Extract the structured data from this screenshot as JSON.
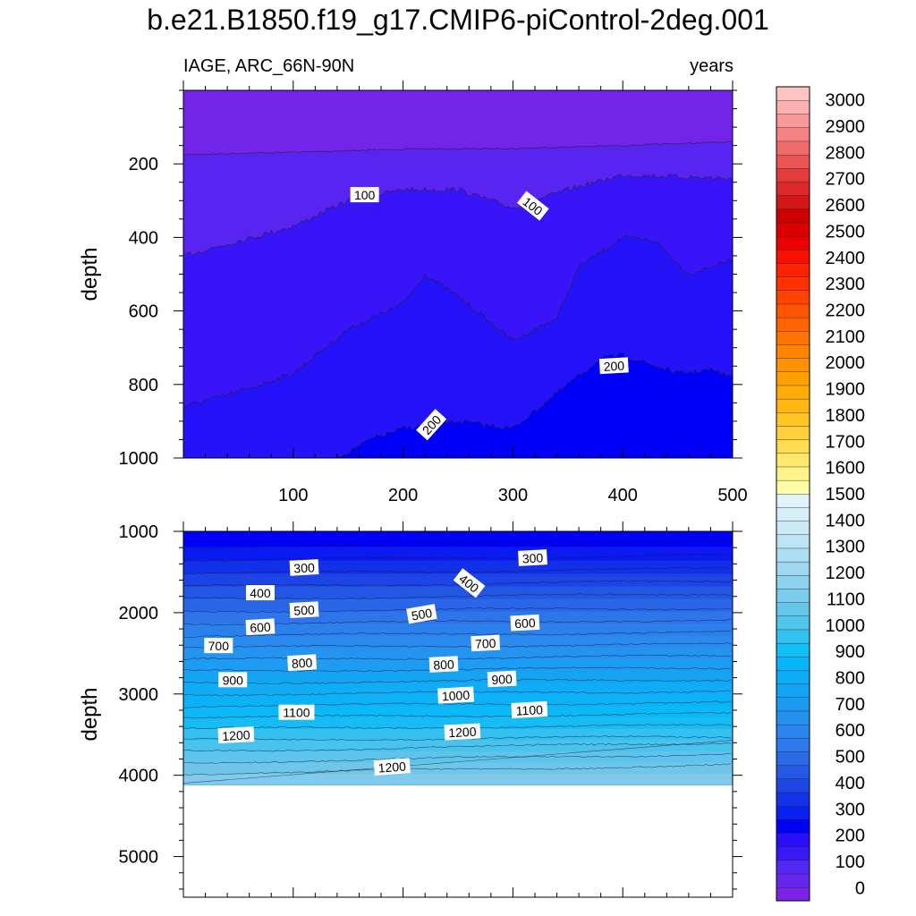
{
  "title": "b.e21.B1850.f19_g17.CMIP6-piControl-2deg.001",
  "left_subtitle": "IAGE, ARC_66N-90N",
  "right_subtitle": "years",
  "chart_data": [
    {
      "type": "heatmap",
      "panel": "upper",
      "variable": "IAGE",
      "region": "ARC_66N-90N",
      "units": "years",
      "xlim": [
        0,
        500
      ],
      "ylim": [
        0,
        1000
      ],
      "y_inverted": true,
      "xticks": [
        "100",
        "200",
        "300",
        "400",
        "500"
      ],
      "yticks": [
        "200",
        "400",
        "600",
        "800",
        "1000"
      ],
      "ylabel": "depth",
      "contour_labels": [
        {
          "text": "100",
          "x": 165,
          "depth": 285
        },
        {
          "text": "100",
          "x": 318,
          "depth": 315
        },
        {
          "text": "200",
          "x": 392,
          "depth": 750
        },
        {
          "text": "200",
          "x": 226,
          "depth": 910
        }
      ],
      "isolines": [
        {
          "level": 50,
          "x": [
            0,
            100,
            200,
            300,
            400,
            500
          ],
          "depth": [
            175,
            168,
            160,
            158,
            150,
            140
          ]
        },
        {
          "level": 100,
          "x": [
            0,
            50,
            100,
            150,
            200,
            250,
            300,
            350,
            400,
            450,
            500
          ],
          "depth": [
            450,
            410,
            370,
            300,
            270,
            270,
            320,
            270,
            230,
            235,
            240
          ]
        },
        {
          "level": 150,
          "x": [
            0,
            50,
            100,
            150,
            200,
            220,
            250,
            300,
            340,
            360,
            400,
            430,
            460,
            500
          ],
          "depth": [
            860,
            820,
            770,
            650,
            580,
            500,
            560,
            680,
            620,
            480,
            400,
            410,
            500,
            460
          ]
        },
        {
          "level": 200,
          "x": [
            140,
            170,
            200,
            250,
            300,
            350,
            380,
            400,
            450,
            480,
            500
          ],
          "depth": [
            1000,
            950,
            920,
            900,
            920,
            800,
            730,
            720,
            770,
            760,
            780
          ]
        }
      ],
      "fill_bands": [
        {
          "range": "0-50",
          "color": "#7224e8"
        },
        {
          "range": "50-100",
          "color": "#5a24f0"
        },
        {
          "range": "100-150",
          "color": "#3a14f8"
        },
        {
          "range": "150-200",
          "color": "#2412f8"
        },
        {
          "range": "200-250",
          "color": "#0000f8"
        }
      ]
    },
    {
      "type": "heatmap",
      "panel": "lower",
      "variable": "IAGE",
      "region": "ARC_66N-90N",
      "units": "years",
      "xlim": [
        0,
        500
      ],
      "ylim": [
        1000,
        5500
      ],
      "y_inverted": true,
      "yticks": [
        "1000",
        "2000",
        "3000",
        "4000",
        "5000"
      ],
      "ylabel": "depth",
      "data_bottom_depth": 4120,
      "contour_labels": [
        {
          "text": "300",
          "x": 110,
          "depth": 1450
        },
        {
          "text": "300",
          "x": 318,
          "depth": 1330
        },
        {
          "text": "400",
          "x": 70,
          "depth": 1760
        },
        {
          "text": "400",
          "x": 260,
          "depth": 1640
        },
        {
          "text": "500",
          "x": 110,
          "depth": 1970
        },
        {
          "text": "500",
          "x": 217,
          "depth": 2020
        },
        {
          "text": "600",
          "x": 70,
          "depth": 2180
        },
        {
          "text": "600",
          "x": 311,
          "depth": 2130
        },
        {
          "text": "700",
          "x": 32,
          "depth": 2410
        },
        {
          "text": "700",
          "x": 275,
          "depth": 2380
        },
        {
          "text": "800",
          "x": 108,
          "depth": 2620
        },
        {
          "text": "800",
          "x": 237,
          "depth": 2640
        },
        {
          "text": "900",
          "x": 45,
          "depth": 2830
        },
        {
          "text": "900",
          "x": 290,
          "depth": 2820
        },
        {
          "text": "1000",
          "x": 248,
          "depth": 3020
        },
        {
          "text": "1100",
          "x": 103,
          "depth": 3230
        },
        {
          "text": "1100",
          "x": 315,
          "depth": 3200
        },
        {
          "text": "1200",
          "x": 48,
          "depth": 3510
        },
        {
          "text": "1200",
          "x": 254,
          "depth": 3470
        },
        {
          "text": "1200",
          "x": 190,
          "depth": 3900
        }
      ],
      "fill_bands": [
        {
          "range": "200-250",
          "color": "#0000f8"
        },
        {
          "range": "250-300",
          "color": "#0a1af0"
        },
        {
          "range": "300-350",
          "color": "#1230e8"
        },
        {
          "range": "350-400",
          "color": "#1c44e6"
        },
        {
          "range": "400-450",
          "color": "#2456e6"
        },
        {
          "range": "450-500",
          "color": "#2a66e8"
        },
        {
          "range": "500-550",
          "color": "#2e74ea"
        },
        {
          "range": "550-600",
          "color": "#2c80ec"
        },
        {
          "range": "600-650",
          "color": "#2a8aee"
        },
        {
          "range": "650-700",
          "color": "#2494f0"
        },
        {
          "range": "700-750",
          "color": "#1c9cf2"
        },
        {
          "range": "750-800",
          "color": "#14a4f4"
        },
        {
          "range": "800-850",
          "color": "#10acf6"
        },
        {
          "range": "850-900",
          "color": "#0cb2f6"
        },
        {
          "range": "900-950",
          "color": "#0cb8f6"
        },
        {
          "range": "950-1000",
          "color": "#18bcf4"
        },
        {
          "range": "1000-1050",
          "color": "#34c0f0"
        },
        {
          "range": "1050-1100",
          "color": "#4ac2ee"
        },
        {
          "range": "1100-1150",
          "color": "#5ec4ec"
        },
        {
          "range": "1150-1200",
          "color": "#6ec6ea"
        },
        {
          "range": "1200-1250",
          "color": "#80caee"
        }
      ]
    },
    {
      "type": "colorbar",
      "labels": [
        "0",
        "100",
        "200",
        "300",
        "400",
        "500",
        "600",
        "700",
        "800",
        "900",
        "1000",
        "1100",
        "1200",
        "1300",
        "1400",
        "1500",
        "1600",
        "1700",
        "1800",
        "1900",
        "2000",
        "2100",
        "2200",
        "2300",
        "2400",
        "2500",
        "2600",
        "2700",
        "2800",
        "2900",
        "3000"
      ],
      "bands": [
        "#7b22e6",
        "#6626ee",
        "#5228f2",
        "#3a18f6",
        "#2a10fa",
        "#0000f8",
        "#0a20f0",
        "#1432e8",
        "#1e46e4",
        "#2658e6",
        "#2c6ae8",
        "#2e7aec",
        "#2a86ee",
        "#2490f0",
        "#1a9af2",
        "#10a4f4",
        "#0cacf6",
        "#06b6f8",
        "#12bef4",
        "#34c2f0",
        "#50c6ec",
        "#64c8ea",
        "#7ccdec",
        "#8ed2ee",
        "#9ed8f0",
        "#aedef2",
        "#bee4f4",
        "#cbeaf6",
        "#d6eef8",
        "#e2f2fa",
        "#fffca8",
        "#fff28a",
        "#ffe86c",
        "#ffdc50",
        "#ffd03a",
        "#ffc426",
        "#ffb812",
        "#ffac06",
        "#ffa000",
        "#ff9200",
        "#ff8400",
        "#ff7400",
        "#ff6400",
        "#ff5400",
        "#ff4400",
        "#ff3200",
        "#ff2200",
        "#f81000",
        "#ec0000",
        "#dc0000",
        "#cc0000",
        "#d41616",
        "#dc2828",
        "#e43c3c",
        "#ea5454",
        "#f06c6c",
        "#f48282",
        "#f89898",
        "#fcb0b0",
        "#fec4c4"
      ]
    }
  ]
}
